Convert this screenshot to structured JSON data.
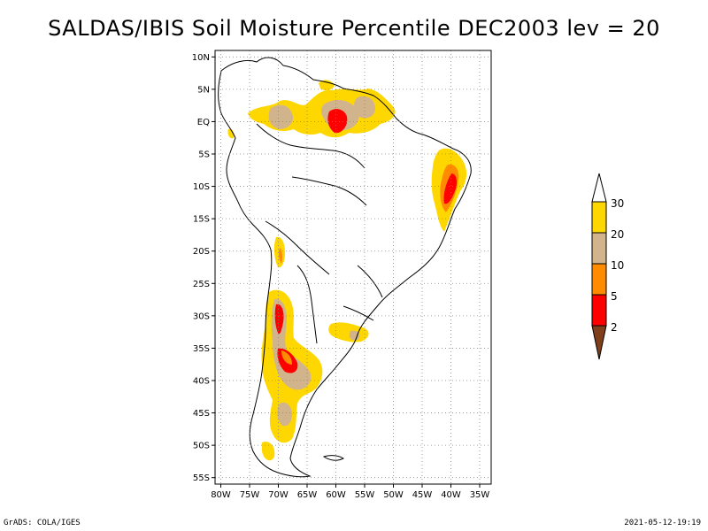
{
  "title": "SALDAS/IBIS Soil Moisture Percentile DEC2003 lev = 20",
  "map": {
    "lon_ticks": [
      "80W",
      "75W",
      "70W",
      "65W",
      "60W",
      "55W",
      "50W",
      "45W",
      "40W",
      "35W"
    ],
    "lat_ticks": [
      "10N",
      "5N",
      "EQ",
      "5S",
      "10S",
      "15S",
      "20S",
      "25S",
      "30S",
      "35S",
      "40S",
      "45S",
      "50S",
      "55S"
    ],
    "lon_range": [
      -81,
      -33
    ],
    "lat_range": [
      -56,
      11
    ],
    "grid": true
  },
  "legend": {
    "levels": [
      "2",
      "5",
      "10",
      "20",
      "30"
    ],
    "colors": {
      "below_2": "#7f3f1a",
      "2_5": "#ff0000",
      "5_10": "#ff8c00",
      "10_20": "#d2b48c",
      "20_30": "#ffd700",
      "above_30": "#ffffff"
    }
  },
  "footer": {
    "left": "GrADS: COLA/IGES",
    "right": "2021-05-12-19:19"
  }
}
